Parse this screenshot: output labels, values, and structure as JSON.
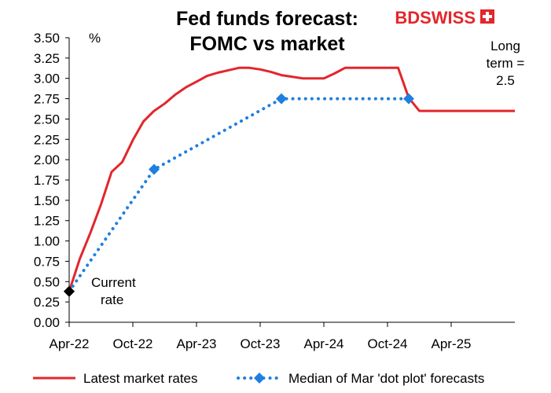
{
  "chart_data": {
    "type": "line",
    "title": "Fed funds forecast:",
    "subtitle": "FOMC vs market",
    "ylabel": "%",
    "ylim": [
      0,
      3.5
    ],
    "ytick_labels": [
      "0.00",
      "0.25",
      "0.50",
      "0.75",
      "1.00",
      "1.25",
      "1.50",
      "1.75",
      "2.00",
      "2.25",
      "2.50",
      "2.75",
      "3.00",
      "3.25",
      "3.50"
    ],
    "xtick_labels": [
      "Apr-22",
      "Oct-22",
      "Apr-23",
      "Oct-23",
      "Apr-24",
      "Oct-24",
      "Apr-25"
    ],
    "xlim": [
      "2022-04",
      "2025-10"
    ],
    "grid": false,
    "legend_position": "bottom",
    "series": [
      {
        "name": "Latest market rates",
        "color": "#e3262b",
        "style": "solid",
        "points": [
          [
            "2022-04",
            0.38
          ],
          [
            "2022-05",
            0.78
          ],
          [
            "2022-06",
            1.1
          ],
          [
            "2022-07",
            1.45
          ],
          [
            "2022-08",
            1.85
          ],
          [
            "2022-09",
            1.97
          ],
          [
            "2022-10",
            2.24
          ],
          [
            "2022-11",
            2.47
          ],
          [
            "2022-12",
            2.6
          ],
          [
            "2023-01",
            2.69
          ],
          [
            "2023-02",
            2.8
          ],
          [
            "2023-03",
            2.89
          ],
          [
            "2023-04",
            2.96
          ],
          [
            "2023-05",
            3.03
          ],
          [
            "2023-06",
            3.07
          ],
          [
            "2023-07",
            3.1
          ],
          [
            "2023-08",
            3.13
          ],
          [
            "2023-09",
            3.13
          ],
          [
            "2023-10",
            3.11
          ],
          [
            "2023-11",
            3.08
          ],
          [
            "2023-12",
            3.04
          ],
          [
            "2024-01",
            3.02
          ],
          [
            "2024-02",
            3.0
          ],
          [
            "2024-03",
            3.0
          ],
          [
            "2024-04",
            3.0
          ],
          [
            "2024-05",
            3.06
          ],
          [
            "2024-06",
            3.13
          ],
          [
            "2024-07",
            3.13
          ],
          [
            "2024-08",
            3.13
          ],
          [
            "2024-09",
            3.13
          ],
          [
            "2024-10",
            3.13
          ],
          [
            "2024-11",
            3.13
          ],
          [
            "2024-12",
            2.76
          ],
          [
            "2025-01",
            2.6
          ],
          [
            "2025-02",
            2.6
          ],
          [
            "2025-03",
            2.6
          ],
          [
            "2025-04",
            2.6
          ],
          [
            "2025-05",
            2.6
          ],
          [
            "2025-06",
            2.6
          ],
          [
            "2025-07",
            2.6
          ],
          [
            "2025-08",
            2.6
          ],
          [
            "2025-09",
            2.6
          ],
          [
            "2025-10",
            2.6
          ]
        ]
      },
      {
        "name": "Median of Mar 'dot plot' forecasts",
        "color": "#1f7fe0",
        "style": "dotted",
        "marker": "diamond",
        "points": [
          [
            "2022-04",
            0.38
          ],
          [
            "2022-12",
            1.88
          ],
          [
            "2023-12",
            2.75
          ],
          [
            "2024-12",
            2.75
          ]
        ]
      }
    ],
    "current_rate": {
      "x": "2022-04",
      "y": 0.38,
      "color": "#000000"
    },
    "annotations": {
      "current_rate": [
        "Current",
        "rate"
      ],
      "long_term": [
        "Long",
        "term =",
        "2.5"
      ]
    }
  },
  "logo": {
    "text": "BDSWISS",
    "color": "#e3262b"
  }
}
